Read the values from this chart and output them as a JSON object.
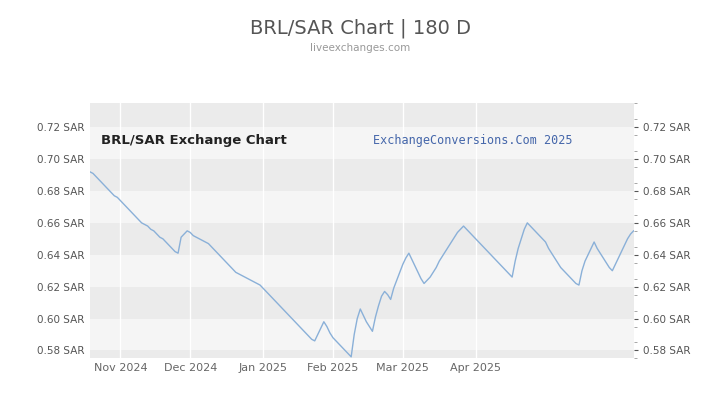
{
  "title": "BRL/SAR Chart | 180 D",
  "subtitle": "liveexchanges.com",
  "watermark": "ExchangeConversions.Com 2025",
  "chart_label": "BRL/SAR Exchange Chart",
  "ylim": [
    0.575,
    0.735
  ],
  "yticks": [
    0.58,
    0.6,
    0.62,
    0.64,
    0.66,
    0.68,
    0.7,
    0.72
  ],
  "line_color": "#8ab0d8",
  "bg_color": "#ffffff",
  "band_light": "#ebebeb",
  "band_white": "#f5f5f5",
  "title_color": "#555555",
  "subtitle_color": "#999999",
  "watermark_color": "#4466aa",
  "label_color": "#222222",
  "x_labels": [
    "Nov 2024",
    "Dec 2024",
    "Jan 2025",
    "Feb 2025",
    "Mar 2025",
    "Apr 2025"
  ],
  "data_y": [
    0.692,
    0.691,
    0.689,
    0.687,
    0.685,
    0.683,
    0.681,
    0.679,
    0.677,
    0.676,
    0.674,
    0.672,
    0.67,
    0.668,
    0.666,
    0.664,
    0.662,
    0.66,
    0.659,
    0.658,
    0.656,
    0.655,
    0.653,
    0.651,
    0.65,
    0.648,
    0.646,
    0.644,
    0.642,
    0.641,
    0.651,
    0.653,
    0.655,
    0.654,
    0.652,
    0.651,
    0.65,
    0.649,
    0.648,
    0.647,
    0.645,
    0.643,
    0.641,
    0.639,
    0.637,
    0.635,
    0.633,
    0.631,
    0.629,
    0.628,
    0.627,
    0.626,
    0.625,
    0.624,
    0.623,
    0.622,
    0.621,
    0.619,
    0.617,
    0.615,
    0.613,
    0.611,
    0.609,
    0.607,
    0.605,
    0.603,
    0.601,
    0.599,
    0.597,
    0.595,
    0.593,
    0.591,
    0.589,
    0.587,
    0.586,
    0.59,
    0.594,
    0.598,
    0.595,
    0.591,
    0.588,
    0.586,
    0.584,
    0.582,
    0.58,
    0.578,
    0.576,
    0.59,
    0.6,
    0.606,
    0.602,
    0.598,
    0.595,
    0.592,
    0.601,
    0.608,
    0.614,
    0.617,
    0.615,
    0.612,
    0.619,
    0.624,
    0.629,
    0.634,
    0.638,
    0.641,
    0.637,
    0.633,
    0.629,
    0.625,
    0.622,
    0.624,
    0.626,
    0.629,
    0.632,
    0.636,
    0.639,
    0.642,
    0.645,
    0.648,
    0.651,
    0.654,
    0.656,
    0.658,
    0.656,
    0.654,
    0.652,
    0.65,
    0.648,
    0.646,
    0.644,
    0.642,
    0.64,
    0.638,
    0.636,
    0.634,
    0.632,
    0.63,
    0.628,
    0.626,
    0.636,
    0.644,
    0.65,
    0.656,
    0.66,
    0.658,
    0.656,
    0.654,
    0.652,
    0.65,
    0.648,
    0.644,
    0.641,
    0.638,
    0.635,
    0.632,
    0.63,
    0.628,
    0.626,
    0.624,
    0.622,
    0.621,
    0.63,
    0.636,
    0.64,
    0.644,
    0.648,
    0.644,
    0.641,
    0.638,
    0.635,
    0.632,
    0.63,
    0.634,
    0.638,
    0.642,
    0.646,
    0.65,
    0.653,
    0.655
  ]
}
